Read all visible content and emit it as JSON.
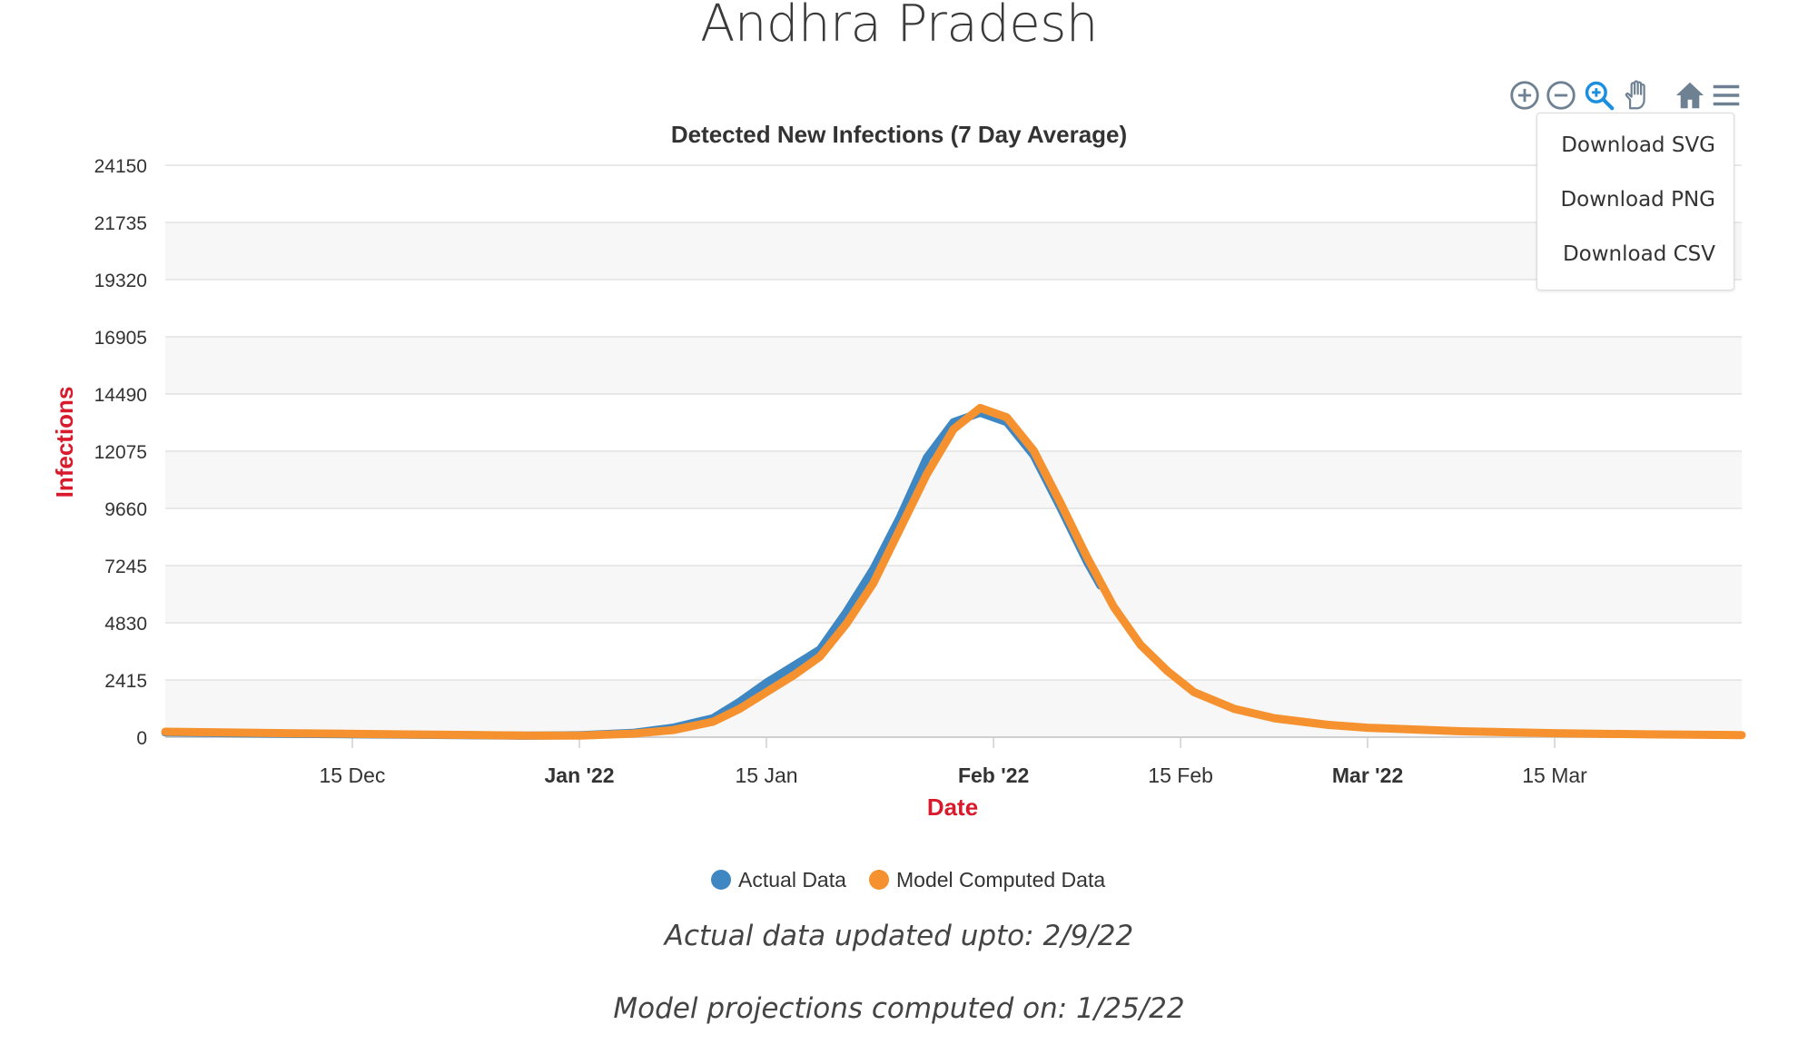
{
  "page": {
    "title": "Andhra Pradesh",
    "footer_actual": "Actual data updated upto: 2/9/22",
    "footer_model": "Model projections computed on: 1/25/22"
  },
  "toolbar": {
    "icons": [
      "zoom-in-icon",
      "zoom-out-icon",
      "zoom-icon",
      "pan-icon",
      "home-icon",
      "menu-icon"
    ],
    "active_icon": "zoom-icon"
  },
  "menu": {
    "items": [
      "Download SVG",
      "Download PNG",
      "Download CSV"
    ]
  },
  "colors": {
    "actual": "#3f87c2",
    "model": "#f5922f",
    "axis_title": "#d81a2c",
    "icon": "#6e8192",
    "icon_active": "#1a8fe0"
  },
  "chart_data": {
    "type": "line",
    "title": "Detected New Infections (7 Day Average)",
    "xlabel": "Date",
    "ylabel": "Infections",
    "xlim": [
      "2021-12-01",
      "2022-03-29"
    ],
    "ylim": [
      0,
      24150
    ],
    "yticks": [
      0,
      2415,
      4830,
      7245,
      9660,
      12075,
      14490,
      16905,
      19320,
      21735,
      24150
    ],
    "xticks": [
      {
        "date": "2021-12-15",
        "label": "15 Dec",
        "bold": false
      },
      {
        "date": "2022-01-01",
        "label": "Jan '22",
        "bold": true
      },
      {
        "date": "2022-01-15",
        "label": "15 Jan",
        "bold": false
      },
      {
        "date": "2022-02-01",
        "label": "Feb '22",
        "bold": true
      },
      {
        "date": "2022-02-15",
        "label": "15 Feb",
        "bold": false
      },
      {
        "date": "2022-03-01",
        "label": "Mar '22",
        "bold": true
      },
      {
        "date": "2022-03-15",
        "label": "15 Mar",
        "bold": false
      }
    ],
    "grid": true,
    "legend_position": "bottom-center",
    "series": [
      {
        "name": "Actual Data",
        "color": "#3f87c2",
        "points": [
          [
            "2021-12-01",
            200
          ],
          [
            "2021-12-10",
            140
          ],
          [
            "2021-12-20",
            100
          ],
          [
            "2021-12-28",
            60
          ],
          [
            "2022-01-01",
            80
          ],
          [
            "2022-01-05",
            180
          ],
          [
            "2022-01-08",
            400
          ],
          [
            "2022-01-11",
            800
          ],
          [
            "2022-01-13",
            1500
          ],
          [
            "2022-01-15",
            2300
          ],
          [
            "2022-01-17",
            3000
          ],
          [
            "2022-01-19",
            3700
          ],
          [
            "2022-01-21",
            5300
          ],
          [
            "2022-01-23",
            7100
          ],
          [
            "2022-01-25",
            9300
          ],
          [
            "2022-01-27",
            11800
          ],
          [
            "2022-01-29",
            13300
          ],
          [
            "2022-01-31",
            13700
          ],
          [
            "2022-02-02",
            13300
          ],
          [
            "2022-02-04",
            11900
          ],
          [
            "2022-02-06",
            9700
          ],
          [
            "2022-02-08",
            7400
          ],
          [
            "2022-02-09",
            6400
          ]
        ]
      },
      {
        "name": "Model Computed Data",
        "color": "#f5922f",
        "points": [
          [
            "2021-12-01",
            230
          ],
          [
            "2021-12-10",
            170
          ],
          [
            "2021-12-20",
            110
          ],
          [
            "2021-12-28",
            70
          ],
          [
            "2022-01-01",
            70
          ],
          [
            "2022-01-05",
            150
          ],
          [
            "2022-01-08",
            300
          ],
          [
            "2022-01-11",
            650
          ],
          [
            "2022-01-13",
            1200
          ],
          [
            "2022-01-15",
            1900
          ],
          [
            "2022-01-17",
            2600
          ],
          [
            "2022-01-19",
            3400
          ],
          [
            "2022-01-21",
            4800
          ],
          [
            "2022-01-23",
            6500
          ],
          [
            "2022-01-25",
            8800
          ],
          [
            "2022-01-27",
            11100
          ],
          [
            "2022-01-29",
            13000
          ],
          [
            "2022-01-31",
            13900
          ],
          [
            "2022-02-02",
            13500
          ],
          [
            "2022-02-04",
            12100
          ],
          [
            "2022-02-06",
            9900
          ],
          [
            "2022-02-08",
            7600
          ],
          [
            "2022-02-10",
            5500
          ],
          [
            "2022-02-12",
            3900
          ],
          [
            "2022-02-14",
            2800
          ],
          [
            "2022-02-16",
            1900
          ],
          [
            "2022-02-19",
            1200
          ],
          [
            "2022-02-22",
            800
          ],
          [
            "2022-02-26",
            520
          ],
          [
            "2022-03-01",
            400
          ],
          [
            "2022-03-08",
            250
          ],
          [
            "2022-03-15",
            170
          ],
          [
            "2022-03-22",
            120
          ],
          [
            "2022-03-29",
            90
          ]
        ]
      }
    ]
  }
}
